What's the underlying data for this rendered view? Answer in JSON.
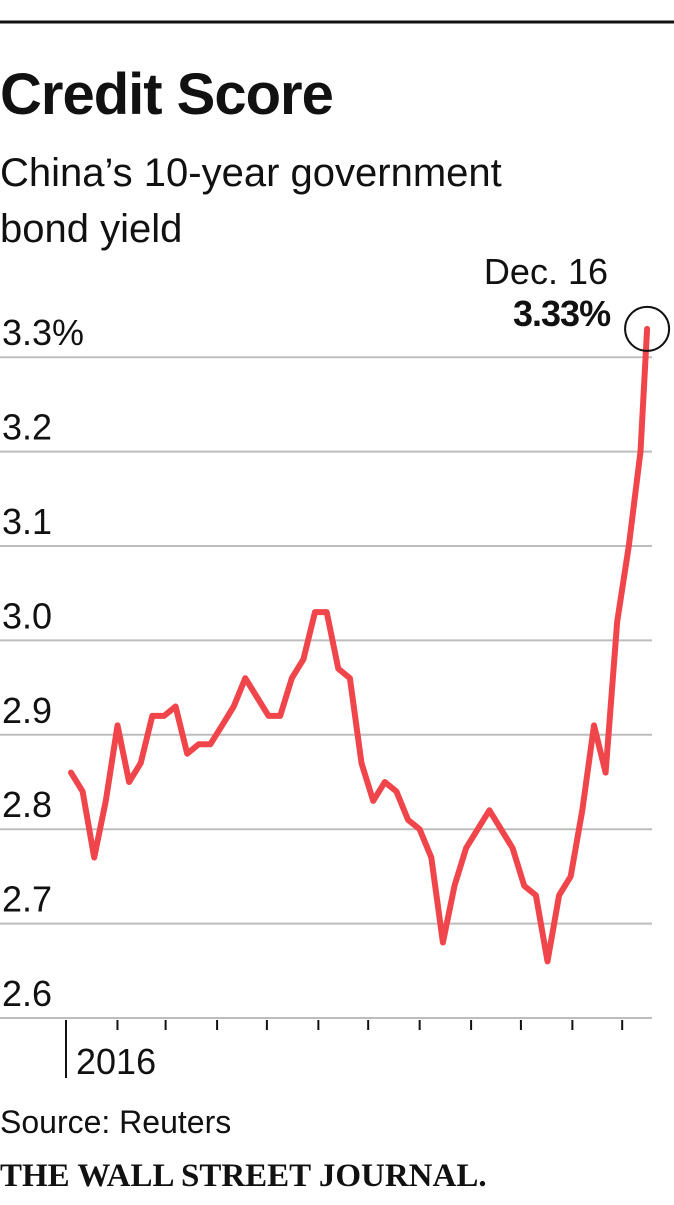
{
  "chart_data": {
    "type": "line",
    "title": "Credit Score",
    "subtitle": [
      "China’s 10-year government",
      "bond yield"
    ],
    "annotation": "Dec. 16",
    "source": "Source: Reuters",
    "credit": "THE WALL STREET JOURNAL.",
    "x": [
      "2016-01-04",
      "2016-01-11",
      "2016-01-18",
      "2016-01-25",
      "2016-02-01",
      "2016-02-08",
      "2016-02-15",
      "2016-02-22",
      "2016-02-29",
      "2016-03-07",
      "2016-03-14",
      "2016-03-21",
      "2016-03-28",
      "2016-04-04",
      "2016-04-11",
      "2016-04-18",
      "2016-04-25",
      "2016-05-02",
      "2016-05-09",
      "2016-05-16",
      "2016-05-23",
      "2016-05-30",
      "2016-06-06",
      "2016-06-13",
      "2016-06-20",
      "2016-06-27",
      "2016-07-04",
      "2016-07-11",
      "2016-07-18",
      "2016-07-25",
      "2016-08-01",
      "2016-08-08",
      "2016-08-15",
      "2016-08-22",
      "2016-08-29",
      "2016-09-05",
      "2016-09-12",
      "2016-09-19",
      "2016-09-26",
      "2016-10-03",
      "2016-10-10",
      "2016-10-17",
      "2016-10-24",
      "2016-10-31",
      "2016-11-07",
      "2016-11-14",
      "2016-11-21",
      "2016-11-28",
      "2016-12-05",
      "2016-12-12",
      "2016-12-16"
    ],
    "series": [
      {
        "name": "China 10-year government bond yield",
        "color": "#f0464b",
        "values": [
          2.86,
          2.84,
          2.77,
          2.83,
          2.91,
          2.85,
          2.87,
          2.92,
          2.92,
          2.93,
          2.88,
          2.89,
          2.89,
          2.91,
          2.93,
          2.96,
          2.94,
          2.92,
          2.92,
          2.96,
          2.98,
          3.03,
          3.03,
          2.97,
          2.96,
          2.87,
          2.83,
          2.85,
          2.84,
          2.81,
          2.8,
          2.77,
          2.68,
          2.74,
          2.78,
          2.8,
          2.82,
          2.8,
          2.78,
          2.74,
          2.73,
          2.66,
          2.73,
          2.75,
          2.82,
          2.91,
          2.86,
          3.02,
          3.1,
          3.2,
          3.33
        ],
        "value_labels": [
          null,
          null,
          null,
          null,
          null,
          null,
          null,
          null,
          null,
          null,
          null,
          null,
          null,
          null,
          null,
          null,
          null,
          null,
          null,
          null,
          null,
          null,
          null,
          null,
          null,
          null,
          null,
          null,
          null,
          null,
          null,
          null,
          null,
          null,
          null,
          null,
          null,
          null,
          null,
          null,
          null,
          null,
          null,
          null,
          null,
          null,
          null,
          null,
          null,
          null,
          "3.33%"
        ]
      }
    ],
    "xlim": [
      "2016-01-01",
      "2016-12-31"
    ],
    "xticks": [
      {
        "value": "2016-01-01",
        "label": "2016"
      },
      "2016-02-01",
      "2016-03-01",
      "2016-04-01",
      "2016-05-01",
      "2016-06-01",
      "2016-07-01",
      "2016-08-01",
      "2016-09-01",
      "2016-10-01",
      "2016-11-01",
      "2016-12-01"
    ],
    "ylim": [
      2.6,
      3.35
    ],
    "yticks": [
      {
        "value": 3.3,
        "label": "3.3%"
      },
      3.2,
      3.1,
      {
        "value": 3,
        "label": "3.0"
      },
      2.9,
      2.8,
      2.7,
      2.6
    ],
    "grid": true
  }
}
